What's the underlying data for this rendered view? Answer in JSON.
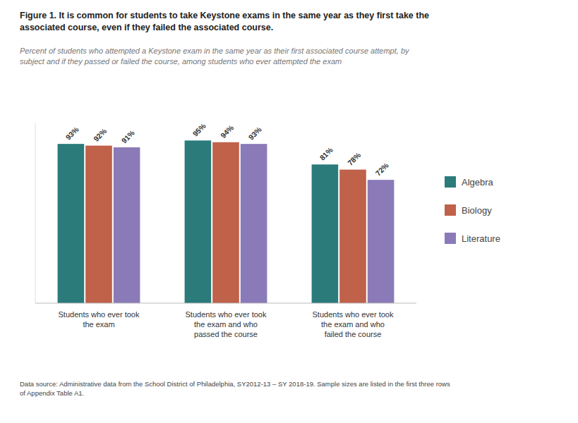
{
  "chart_data": {
    "type": "bar",
    "title": "Figure 1. It is common for students to take Keystone exams in the same year as they first take the\nassociated course, even if they failed the associated course.",
    "subtitle": "Percent of students who attempted a Keystone exam in the same year as their first associated course attempt, by\nsubject and if they passed or failed the course, among students who ever attempted the exam",
    "annotations": [
      "Data source: Administrative data from the School District of Philadelphia, SY2012-13 – SY 2018-19. Sample sizes are listed in the first three rows\nof Appendix Table A1."
    ],
    "categories": [
      "Students who ever took\nthe exam",
      "Students who ever took\nthe exam and who\npassed the course",
      "Students who ever took\nthe exam and who\nfailed the course"
    ],
    "series": [
      {
        "name": "Algebra",
        "color": "#2b7b7b",
        "values": [
          93,
          95,
          81
        ],
        "value_labels": [
          "93%",
          "95%",
          "81%"
        ]
      },
      {
        "name": "Biology",
        "color": "#c0614a",
        "values": [
          92,
          94,
          78
        ],
        "value_labels": [
          "92%",
          "94%",
          "78%"
        ]
      },
      {
        "name": "Literature",
        "color": "#8b7ab8",
        "values": [
          91,
          93,
          72
        ],
        "value_labels": [
          "91%",
          "93%",
          "72%"
        ]
      }
    ],
    "ylim": [
      0,
      105
    ],
    "data_labels": true,
    "tick_labels": "x",
    "grid": false,
    "legend": "right"
  }
}
